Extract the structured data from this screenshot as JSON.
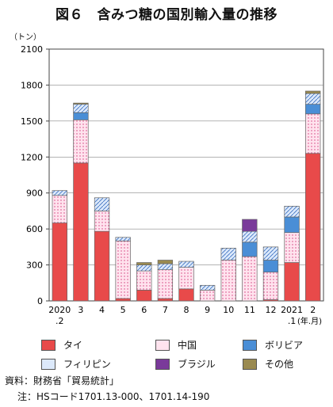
{
  "title": "図６　含みつ糖の国別輸入量の推移",
  "colors": {
    "thai": "#e84a4a",
    "china": "#ffe3ee",
    "bolivia": "#4a8ed6",
    "philippines": "#dce9fb",
    "brazil": "#7a3a9a",
    "other": "#9a8a50"
  },
  "chart_data": {
    "type": "bar",
    "stacked": true,
    "y_unit_label": "（トン）",
    "x_unit_label": "(年.月)",
    "ylim": [
      0,
      2100
    ],
    "yticks": [
      0,
      300,
      600,
      900,
      1200,
      1500,
      1800,
      2100
    ],
    "categories": [
      {
        "top": "2020",
        "bottom": ".2"
      },
      {
        "top": "3",
        "bottom": ""
      },
      {
        "top": "4",
        "bottom": ""
      },
      {
        "top": "5",
        "bottom": ""
      },
      {
        "top": "6",
        "bottom": ""
      },
      {
        "top": "7",
        "bottom": ""
      },
      {
        "top": "8",
        "bottom": ""
      },
      {
        "top": "9",
        "bottom": ""
      },
      {
        "top": "10",
        "bottom": ""
      },
      {
        "top": "11",
        "bottom": ""
      },
      {
        "top": "12",
        "bottom": ""
      },
      {
        "top": "2021",
        "bottom": ".1"
      },
      {
        "top": "2",
        "bottom": ""
      }
    ],
    "series": [
      {
        "name": "タイ",
        "key": "thai",
        "values": [
          650,
          1150,
          580,
          20,
          90,
          20,
          100,
          0,
          0,
          0,
          10,
          320,
          1230
        ]
      },
      {
        "name": "中国",
        "key": "china",
        "values": [
          230,
          360,
          170,
          480,
          160,
          240,
          180,
          90,
          340,
          370,
          230,
          250,
          330
        ]
      },
      {
        "name": "ボリビア",
        "key": "bolivia",
        "values": [
          0,
          60,
          0,
          0,
          0,
          0,
          0,
          0,
          0,
          120,
          100,
          130,
          80
        ]
      },
      {
        "name": "フィリピン",
        "key": "philippines",
        "values": [
          40,
          70,
          110,
          30,
          50,
          50,
          50,
          40,
          100,
          90,
          110,
          90,
          90
        ]
      },
      {
        "name": "ブラジル",
        "key": "brazil",
        "values": [
          0,
          0,
          0,
          0,
          0,
          0,
          0,
          0,
          0,
          100,
          0,
          0,
          0
        ]
      },
      {
        "name": "その他",
        "key": "other",
        "values": [
          0,
          10,
          0,
          0,
          20,
          30,
          0,
          0,
          0,
          0,
          0,
          0,
          20
        ]
      }
    ],
    "legend_position": "bottom"
  },
  "source": "資料：財務省「貿易統計」",
  "note": "注：HSコード1701.13-000、1701.14-190"
}
